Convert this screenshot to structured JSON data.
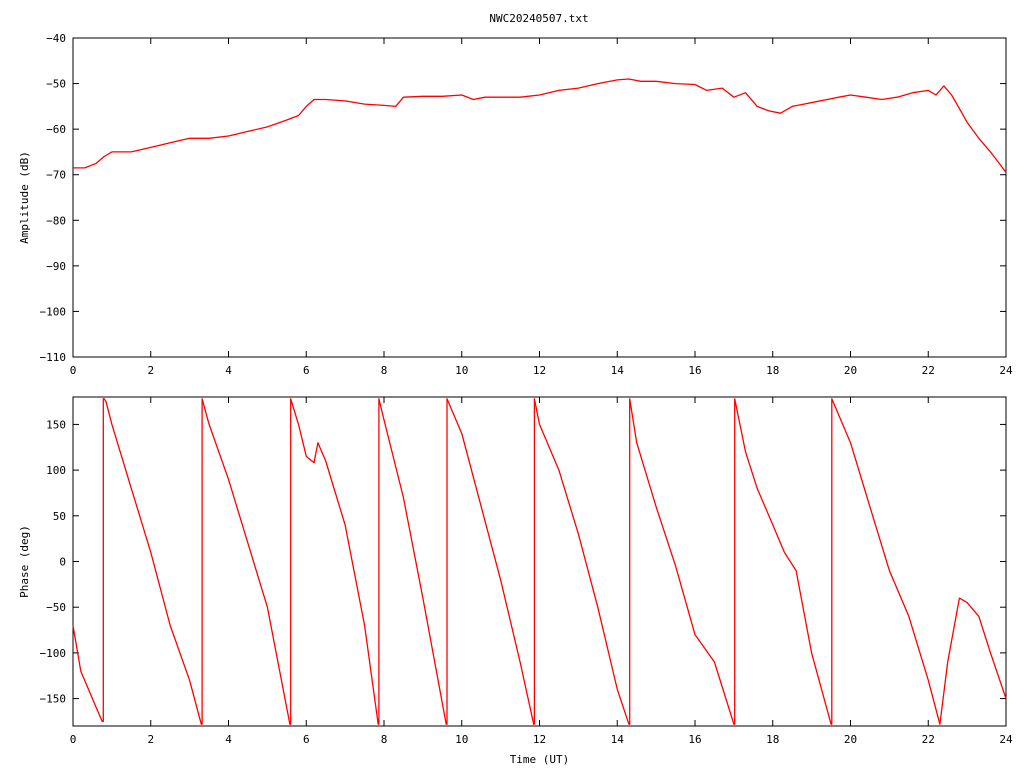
{
  "title": "NWC20240507.txt",
  "colors": {
    "series": "#ff0000",
    "axis": "#000000",
    "background": "#ffffff"
  },
  "chart_data": [
    {
      "type": "line",
      "name": "amplitude",
      "xlabel": "",
      "ylabel": "Amplitude (dB)",
      "xlim": [
        0,
        24
      ],
      "ylim": [
        -110,
        -40
      ],
      "xticks": [
        0,
        2,
        4,
        6,
        8,
        10,
        12,
        14,
        16,
        18,
        20,
        22,
        24
      ],
      "yticks": [
        -110,
        -100,
        -90,
        -80,
        -70,
        -60,
        -50,
        -40
      ],
      "ytick_labels": [
        "−110",
        "−100",
        "−90",
        "−80",
        "−70",
        "−60",
        "−50",
        "−40"
      ],
      "grid": false,
      "series": [
        {
          "x": [
            0,
            0.3,
            0.6,
            0.8,
            1.0,
            1.5,
            2.0,
            2.5,
            3.0,
            3.5,
            4.0,
            4.5,
            5.0,
            5.5,
            5.8,
            6.0,
            6.2,
            6.5,
            7.0,
            7.5,
            8.0,
            8.3,
            8.5,
            9.0,
            9.5,
            10.0,
            10.3,
            10.6,
            11.0,
            11.5,
            12.0,
            12.5,
            13.0,
            13.5,
            14.0,
            14.3,
            14.6,
            15.0,
            15.5,
            16.0,
            16.3,
            16.7,
            17.0,
            17.3,
            17.6,
            17.9,
            18.2,
            18.5,
            18.8,
            19.1,
            19.4,
            19.7,
            20.0,
            20.4,
            20.8,
            21.2,
            21.6,
            22.0,
            22.2,
            22.4,
            22.6,
            22.8,
            23.0,
            23.3,
            23.6,
            24.0
          ],
          "y": [
            -68.5,
            -68.5,
            -67.5,
            -66.0,
            -65.0,
            -65.0,
            -64.0,
            -63.0,
            -62.0,
            -62.0,
            -61.5,
            -60.5,
            -59.5,
            -58.0,
            -57.0,
            -55.0,
            -53.5,
            -53.5,
            -53.8,
            -54.5,
            -54.8,
            -55.0,
            -53.0,
            -52.8,
            -52.8,
            -52.5,
            -53.5,
            -53.0,
            -53.0,
            -53.0,
            -52.5,
            -51.5,
            -51.0,
            -50.0,
            -49.2,
            -49.0,
            -49.5,
            -49.5,
            -50.0,
            -50.2,
            -51.5,
            -51.0,
            -53.0,
            -52.0,
            -55.0,
            -56.0,
            -56.5,
            -55.0,
            -54.5,
            -54.0,
            -53.5,
            -53.0,
            -52.5,
            -53.0,
            -53.5,
            -53.0,
            -52.0,
            -51.5,
            -52.5,
            -50.5,
            -52.5,
            -55.5,
            -58.5,
            -62.0,
            -65.0,
            -69.5
          ]
        }
      ]
    },
    {
      "type": "line",
      "name": "phase",
      "xlabel": "Time (UT)",
      "ylabel": "Phase (deg)",
      "xlim": [
        0,
        24
      ],
      "ylim": [
        -180,
        180
      ],
      "xticks": [
        0,
        2,
        4,
        6,
        8,
        10,
        12,
        14,
        16,
        18,
        20,
        22,
        24
      ],
      "yticks": [
        -150,
        -100,
        -50,
        0,
        50,
        100,
        150
      ],
      "ytick_labels": [
        "−150",
        "−100",
        "−50",
        "0",
        "50",
        "100",
        "150"
      ],
      "grid": false,
      "series": [
        {
          "x": [
            0,
            0.2,
            0.4,
            0.6,
            0.75,
            0.78,
            0.8,
            0.85,
            1.0,
            1.5,
            2.0,
            2.5,
            3.0,
            3.3,
            3.32,
            3.5,
            4.0,
            4.5,
            5.0,
            5.58,
            5.6,
            5.8,
            6.0,
            6.2,
            6.3,
            6.5,
            7.0,
            7.5,
            7.85,
            7.87,
            8.0,
            8.5,
            9.0,
            9.6,
            9.62,
            10.0,
            10.5,
            11.0,
            11.5,
            11.85,
            11.87,
            12.0,
            12.5,
            13.0,
            13.5,
            14.0,
            14.3,
            14.32,
            14.5,
            15.0,
            15.5,
            16.0,
            16.5,
            17.0,
            17.02,
            17.3,
            17.6,
            18.0,
            18.3,
            18.6,
            19.0,
            19.5,
            19.52,
            19.8,
            20.0,
            20.5,
            21.0,
            21.5,
            22.0,
            22.3,
            22.5,
            22.8,
            23.0,
            23.3,
            23.6,
            24.0
          ],
          "y": [
            -70,
            -120,
            -140,
            -160,
            -175,
            178,
            178,
            175,
            150,
            80,
            10,
            -70,
            -130,
            -178,
            178,
            150,
            90,
            20,
            -50,
            -178,
            178,
            150,
            115,
            108,
            130,
            110,
            40,
            -70,
            -178,
            178,
            155,
            70,
            -40,
            -178,
            178,
            140,
            60,
            -20,
            -110,
            -178,
            178,
            150,
            100,
            30,
            -50,
            -140,
            -178,
            178,
            130,
            60,
            -5,
            -80,
            -110,
            -178,
            178,
            120,
            80,
            40,
            10,
            -10,
            -100,
            -178,
            178,
            150,
            130,
            60,
            -10,
            -60,
            -130,
            -178,
            -110,
            -40,
            -45,
            -60,
            -100,
            -150
          ]
        }
      ]
    }
  ]
}
